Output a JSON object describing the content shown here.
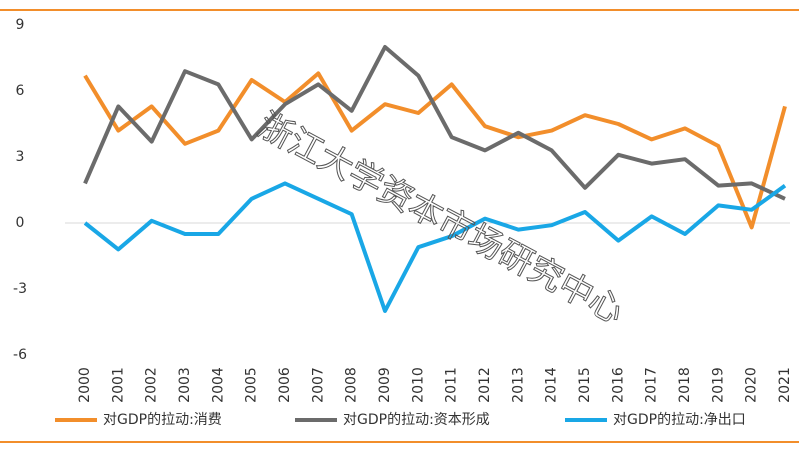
{
  "chart_data": {
    "type": "line",
    "categories": [
      "2000",
      "2001",
      "2002",
      "2003",
      "2004",
      "2005",
      "2006",
      "2007",
      "2008",
      "2009",
      "2010",
      "2011",
      "2012",
      "2013",
      "2014",
      "2015",
      "2016",
      "2017",
      "2018",
      "2019",
      "2020",
      "2021"
    ],
    "series": [
      {
        "name": "对GDP的拉动:消费",
        "color": "#f28e2b",
        "values": [
          6.7,
          4.2,
          5.3,
          3.6,
          4.2,
          6.5,
          5.5,
          6.8,
          4.2,
          5.4,
          5.0,
          6.3,
          4.4,
          3.9,
          4.2,
          4.9,
          4.5,
          3.8,
          4.3,
          3.5,
          -0.2,
          5.3
        ]
      },
      {
        "name": "对GDP的拉动:资本形成",
        "color": "#6b6b6b",
        "values": [
          1.8,
          5.3,
          3.7,
          6.9,
          6.3,
          3.8,
          5.4,
          6.3,
          5.1,
          8.0,
          6.7,
          3.9,
          3.3,
          4.1,
          3.3,
          1.6,
          3.1,
          2.7,
          2.9,
          1.7,
          1.8,
          1.1
        ]
      },
      {
        "name": "对GDP的拉动:净出口",
        "color": "#19a7e6",
        "values": [
          0.0,
          -1.2,
          0.1,
          -0.5,
          -0.5,
          1.1,
          1.8,
          1.1,
          0.4,
          -4.0,
          -1.1,
          -0.6,
          0.2,
          -0.3,
          -0.1,
          0.5,
          -0.8,
          0.3,
          -0.5,
          0.8,
          0.6,
          1.7
        ]
      }
    ],
    "ylim": [
      -6,
      9
    ],
    "yticks": [
      -6,
      -3,
      0,
      3,
      6,
      9
    ],
    "watermark": "浙江大学资本市场研究中心"
  }
}
